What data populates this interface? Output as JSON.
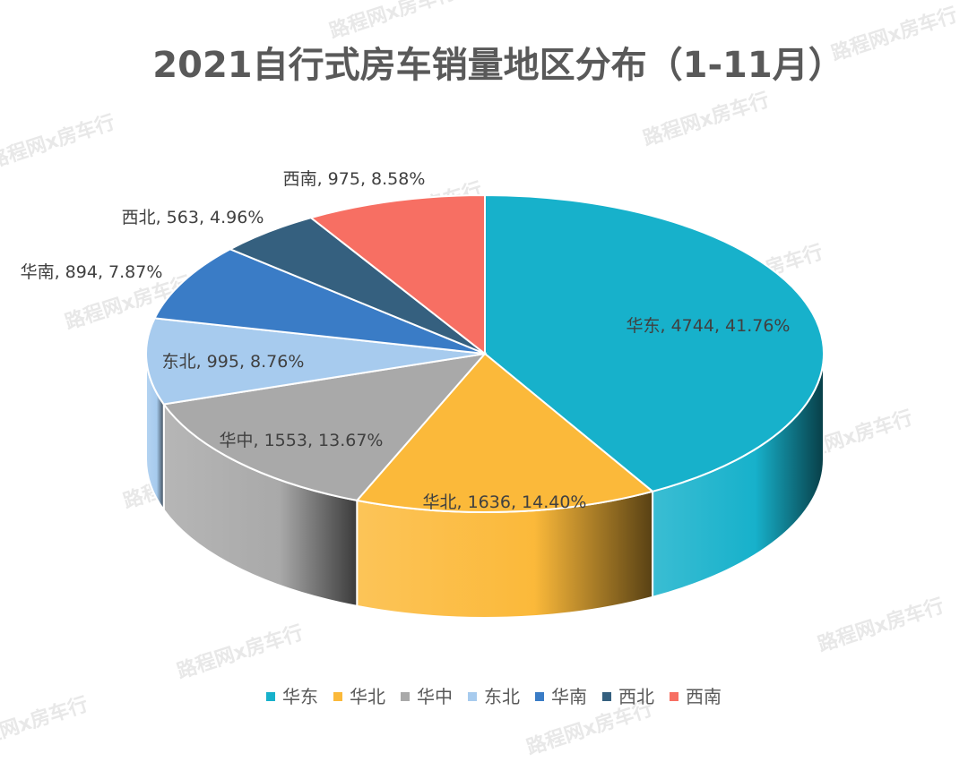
{
  "chart_data": {
    "type": "pie",
    "title": "2021自行式房车销量地区分布（1-11月）",
    "categories": [
      "华东",
      "华北",
      "华中",
      "东北",
      "华南",
      "西北",
      "西南"
    ],
    "values": [
      4744,
      1636,
      1553,
      995,
      894,
      563,
      975
    ],
    "percentages": [
      "41.76%",
      "14.40%",
      "13.67%",
      "8.76%",
      "7.87%",
      "4.96%",
      "8.58%"
    ],
    "data_labels": [
      "华东, 4744, 41.76%",
      "华北, 1636, 14.40%",
      "华中, 1553, 13.67%",
      "东北, 995, 8.76%",
      "华南, 894, 7.87%",
      "西北, 563, 4.96%",
      "西南, 975, 8.58%"
    ],
    "colors": [
      "#17b1cb",
      "#fbb93a",
      "#a9a9a9",
      "#a7cbee",
      "#3a7cc6",
      "#35607f",
      "#f76f63"
    ],
    "legend_position": "bottom",
    "style": "3d-pie"
  },
  "watermark": "路程网x房车行"
}
